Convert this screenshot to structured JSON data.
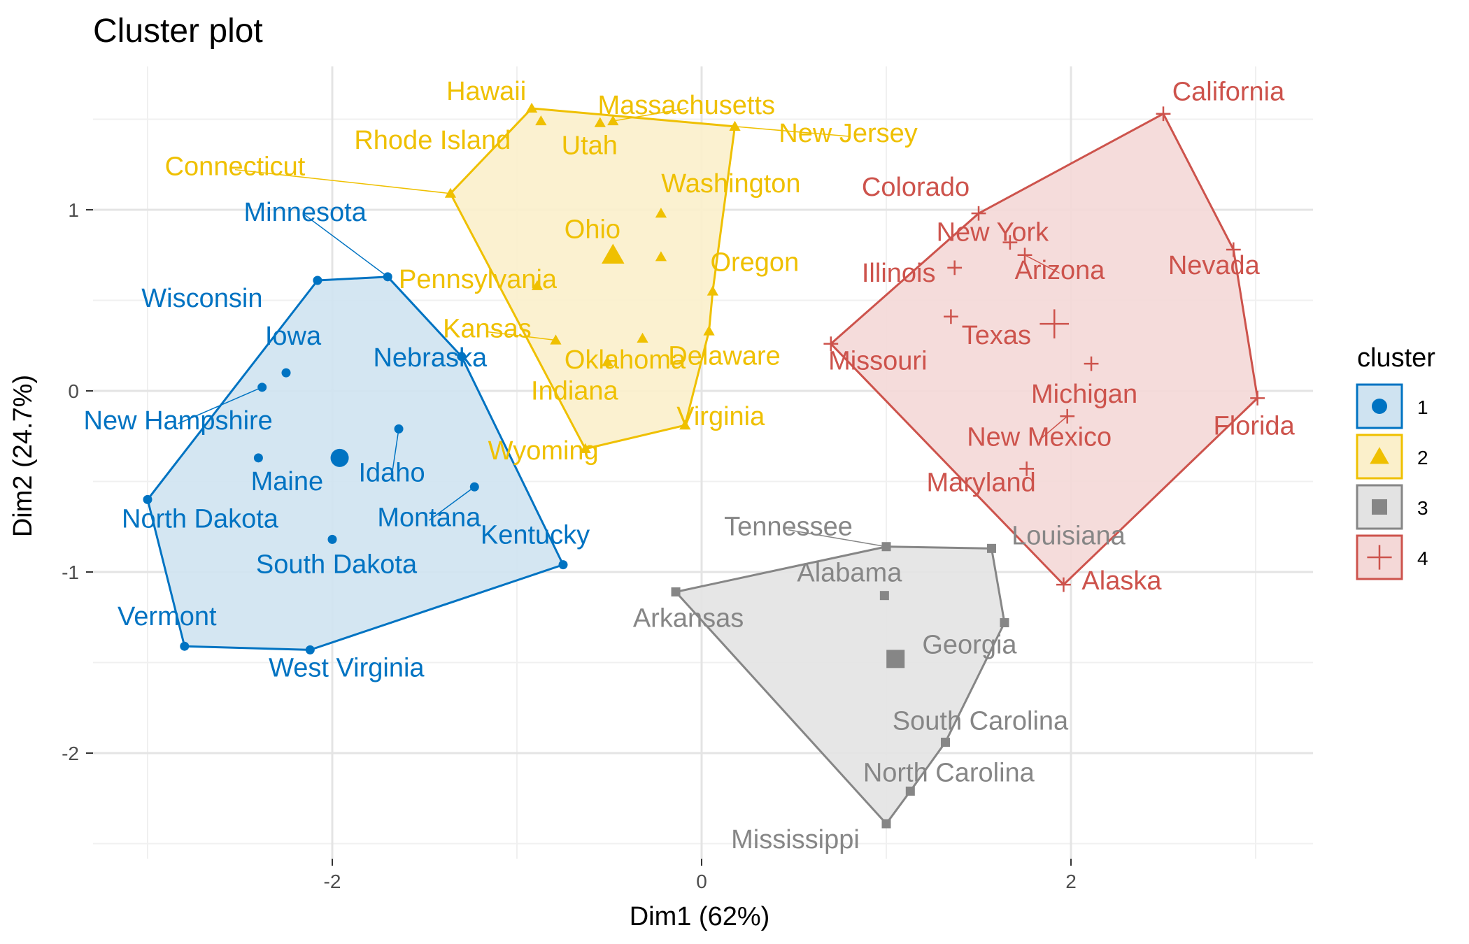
{
  "chart_data": {
    "type": "scatter",
    "title": "Cluster plot",
    "xlabel": "Dim1 (62%)",
    "ylabel": "Dim2 (24.7%)",
    "xlim": [
      -3.3,
      3.3
    ],
    "ylim": [
      -2.5,
      1.65
    ],
    "x_ticks": [
      -2,
      0,
      2
    ],
    "y_ticks": [
      -2,
      -1,
      0,
      1
    ],
    "x_tick_labels": [
      "-2",
      "0",
      "2"
    ],
    "y_tick_labels": [
      "-2",
      "-1",
      "0",
      "1"
    ],
    "grid": true,
    "legend": {
      "title": "cluster",
      "position": "right"
    },
    "clusters": [
      {
        "name": "1",
        "color": "#0073C2",
        "fill": "#cfe3f1",
        "shape": "circle",
        "center": [
          -1.96,
          -0.37
        ],
        "hull": [
          "North Dakota",
          "Wisconsin",
          "Minnesota",
          "Nebraska",
          "Kentucky",
          "West Virginia",
          "Vermont"
        ],
        "points": [
          {
            "label": "Minnesota",
            "x": -1.7,
            "y": 0.63
          },
          {
            "label": "Wisconsin",
            "x": -2.08,
            "y": 0.61
          },
          {
            "label": "Iowa",
            "x": -2.25,
            "y": 0.1
          },
          {
            "label": "New Hampshire",
            "x": -2.38,
            "y": 0.02
          },
          {
            "label": "Nebraska",
            "x": -1.3,
            "y": 0.19
          },
          {
            "label": "Maine",
            "x": -2.4,
            "y": -0.37
          },
          {
            "label": "Idaho",
            "x": -1.64,
            "y": -0.21
          },
          {
            "label": "Montana",
            "x": -1.23,
            "y": -0.53
          },
          {
            "label": "North Dakota",
            "x": -3.0,
            "y": -0.6
          },
          {
            "label": "South Dakota",
            "x": -2.0,
            "y": -0.82
          },
          {
            "label": "Kentucky",
            "x": -0.75,
            "y": -0.96
          },
          {
            "label": "Vermont",
            "x": -2.8,
            "y": -1.41
          },
          {
            "label": "West Virginia",
            "x": -2.12,
            "y": -1.43
          }
        ]
      },
      {
        "name": "2",
        "color": "#EFC000",
        "fill": "#fbf0cb",
        "shape": "triangle",
        "center": [
          -0.48,
          0.75
        ],
        "hull": [
          "Connecticut",
          "Hawaii",
          "New Jersey",
          "Oregon",
          "Delaware",
          "Virginia",
          "Wyoming"
        ],
        "points": [
          {
            "label": "Hawaii",
            "x": -0.92,
            "y": 1.56
          },
          {
            "label": "Massachusetts",
            "x": -0.48,
            "y": 1.49
          },
          {
            "label": "Rhode Island",
            "x": -0.87,
            "y": 1.49
          },
          {
            "label": "Utah",
            "x": -0.55,
            "y": 1.48
          },
          {
            "label": "New Jersey",
            "x": 0.18,
            "y": 1.46
          },
          {
            "label": "Connecticut",
            "x": -1.36,
            "y": 1.09
          },
          {
            "label": "Washington",
            "x": -0.22,
            "y": 0.98
          },
          {
            "label": "Ohio",
            "x": -0.22,
            "y": 0.74
          },
          {
            "label": "Pennsylvania",
            "x": -0.89,
            "y": 0.58
          },
          {
            "label": "Oregon",
            "x": 0.06,
            "y": 0.55
          },
          {
            "label": "Kansas",
            "x": -0.79,
            "y": 0.28
          },
          {
            "label": "Oklahoma",
            "x": -0.32,
            "y": 0.29
          },
          {
            "label": "Delaware",
            "x": 0.04,
            "y": 0.33
          },
          {
            "label": "Indiana",
            "x": -0.51,
            "y": 0.16
          },
          {
            "label": "Virginia",
            "x": -0.09,
            "y": -0.19
          },
          {
            "label": "Wyoming",
            "x": -0.63,
            "y": -0.32
          }
        ]
      },
      {
        "name": "3",
        "color": "#868686",
        "fill": "#e3e3e3",
        "shape": "square",
        "center": [
          1.05,
          -1.48
        ],
        "hull": [
          "Arkansas",
          "Tennessee",
          "Louisiana",
          "Georgia",
          "South Carolina",
          "North Carolina",
          "Mississippi"
        ],
        "points": [
          {
            "label": "Tennessee",
            "x": 1.0,
            "y": -0.86
          },
          {
            "label": "Louisiana",
            "x": 1.57,
            "y": -0.87
          },
          {
            "label": "Alabama",
            "x": 0.99,
            "y": -1.13
          },
          {
            "label": "Arkansas",
            "x": -0.14,
            "y": -1.11
          },
          {
            "label": "Georgia",
            "x": 1.64,
            "y": -1.28
          },
          {
            "label": "South Carolina",
            "x": 1.32,
            "y": -1.94
          },
          {
            "label": "North Carolina",
            "x": 1.13,
            "y": -2.21
          },
          {
            "label": "Mississippi",
            "x": 1.0,
            "y": -2.39
          }
        ]
      },
      {
        "name": "4",
        "color": "#CD534C",
        "fill": "#f4d8d7",
        "shape": "plus",
        "center": [
          1.91,
          0.37
        ],
        "hull": [
          "Missouri",
          "Colorado",
          "California",
          "Nevada",
          "Florida",
          "Alaska"
        ],
        "points": [
          {
            "label": "California",
            "x": 2.5,
            "y": 1.53
          },
          {
            "label": "Colorado",
            "x": 1.5,
            "y": 0.98
          },
          {
            "label": "New York",
            "x": 1.67,
            "y": 0.82
          },
          {
            "label": "Illinois",
            "x": 1.37,
            "y": 0.68
          },
          {
            "label": "Arizona",
            "x": 1.75,
            "y": 0.75
          },
          {
            "label": "Nevada",
            "x": 2.88,
            "y": 0.78
          },
          {
            "label": "Texas",
            "x": 1.35,
            "y": 0.41
          },
          {
            "label": "Missouri",
            "x": 0.7,
            "y": 0.26
          },
          {
            "label": "Michigan",
            "x": 2.11,
            "y": 0.15
          },
          {
            "label": "Florida",
            "x": 3.01,
            "y": -0.04
          },
          {
            "label": "New Mexico",
            "x": 1.98,
            "y": -0.14
          },
          {
            "label": "Maryland",
            "x": 1.76,
            "y": -0.43
          },
          {
            "label": "Alaska",
            "x": 1.96,
            "y": -1.07
          }
        ]
      }
    ]
  }
}
